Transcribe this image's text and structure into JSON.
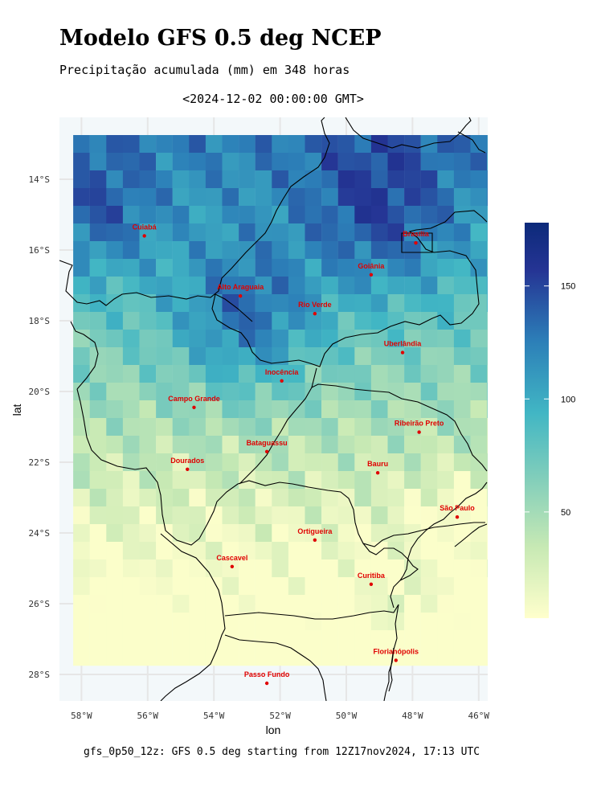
{
  "header": {
    "title": "Modelo GFS 0.5 deg NCEP",
    "subtitle": "Precipitação acumulada (mm) em 348 horas",
    "date": "<2024-12-02 00:00:00 GMT>"
  },
  "footer": {
    "caption": "gfs_0p50_12z: GFS 0.5 deg starting from 12Z17nov2024, 17:13 UTC"
  },
  "map": {
    "x_axis_title": "lon",
    "y_axis_title": "lat",
    "x_ticks": [
      "58°W",
      "56°W",
      "54°W",
      "52°W",
      "50°W",
      "48°W",
      "46°W"
    ],
    "y_ticks": [
      "14°S",
      "16°S",
      "18°S",
      "20°S",
      "22°S",
      "24°S",
      "26°S",
      "28°S"
    ],
    "cities": [
      {
        "name": "Cuiabá",
        "lon": -56.1,
        "lat": -15.6
      },
      {
        "name": "Brasília",
        "lon": -47.9,
        "lat": -15.8
      },
      {
        "name": "Goiânia",
        "lon": -49.25,
        "lat": -16.7
      },
      {
        "name": "Alto Araguaia",
        "lon": -53.2,
        "lat": -17.3
      },
      {
        "name": "Rio Verde",
        "lon": -50.95,
        "lat": -17.8
      },
      {
        "name": "Uberlândia",
        "lon": -48.3,
        "lat": -18.9
      },
      {
        "name": "Inocência",
        "lon": -51.95,
        "lat": -19.7
      },
      {
        "name": "Campo Grande",
        "lon": -54.6,
        "lat": -20.45
      },
      {
        "name": "Ribeirão Preto",
        "lon": -47.8,
        "lat": -21.15
      },
      {
        "name": "Bataguassu",
        "lon": -52.4,
        "lat": -21.7
      },
      {
        "name": "Dourados",
        "lon": -54.8,
        "lat": -22.2
      },
      {
        "name": "Bauru",
        "lon": -49.05,
        "lat": -22.3
      },
      {
        "name": "São Paulo",
        "lon": -46.65,
        "lat": -23.55
      },
      {
        "name": "Ortigueira",
        "lon": -50.95,
        "lat": -24.2
      },
      {
        "name": "Cascavel",
        "lon": -53.45,
        "lat": -24.95
      },
      {
        "name": "Curitiba",
        "lon": -49.25,
        "lat": -25.45
      },
      {
        "name": "Florianópolis",
        "lon": -48.5,
        "lat": -27.6
      },
      {
        "name": "Passo Fundo",
        "lon": -52.4,
        "lat": -28.25
      }
    ]
  },
  "legend": {
    "ticks": [
      "150",
      "100",
      "50"
    ],
    "tick_values": [
      150,
      100,
      50
    ],
    "min": 3,
    "max": 178,
    "colors": [
      "#ffffcc",
      "#c7e9b4",
      "#7fcdbb",
      "#41b6c4",
      "#2c7fb8",
      "#253494",
      "#0c2a7a"
    ]
  }
}
